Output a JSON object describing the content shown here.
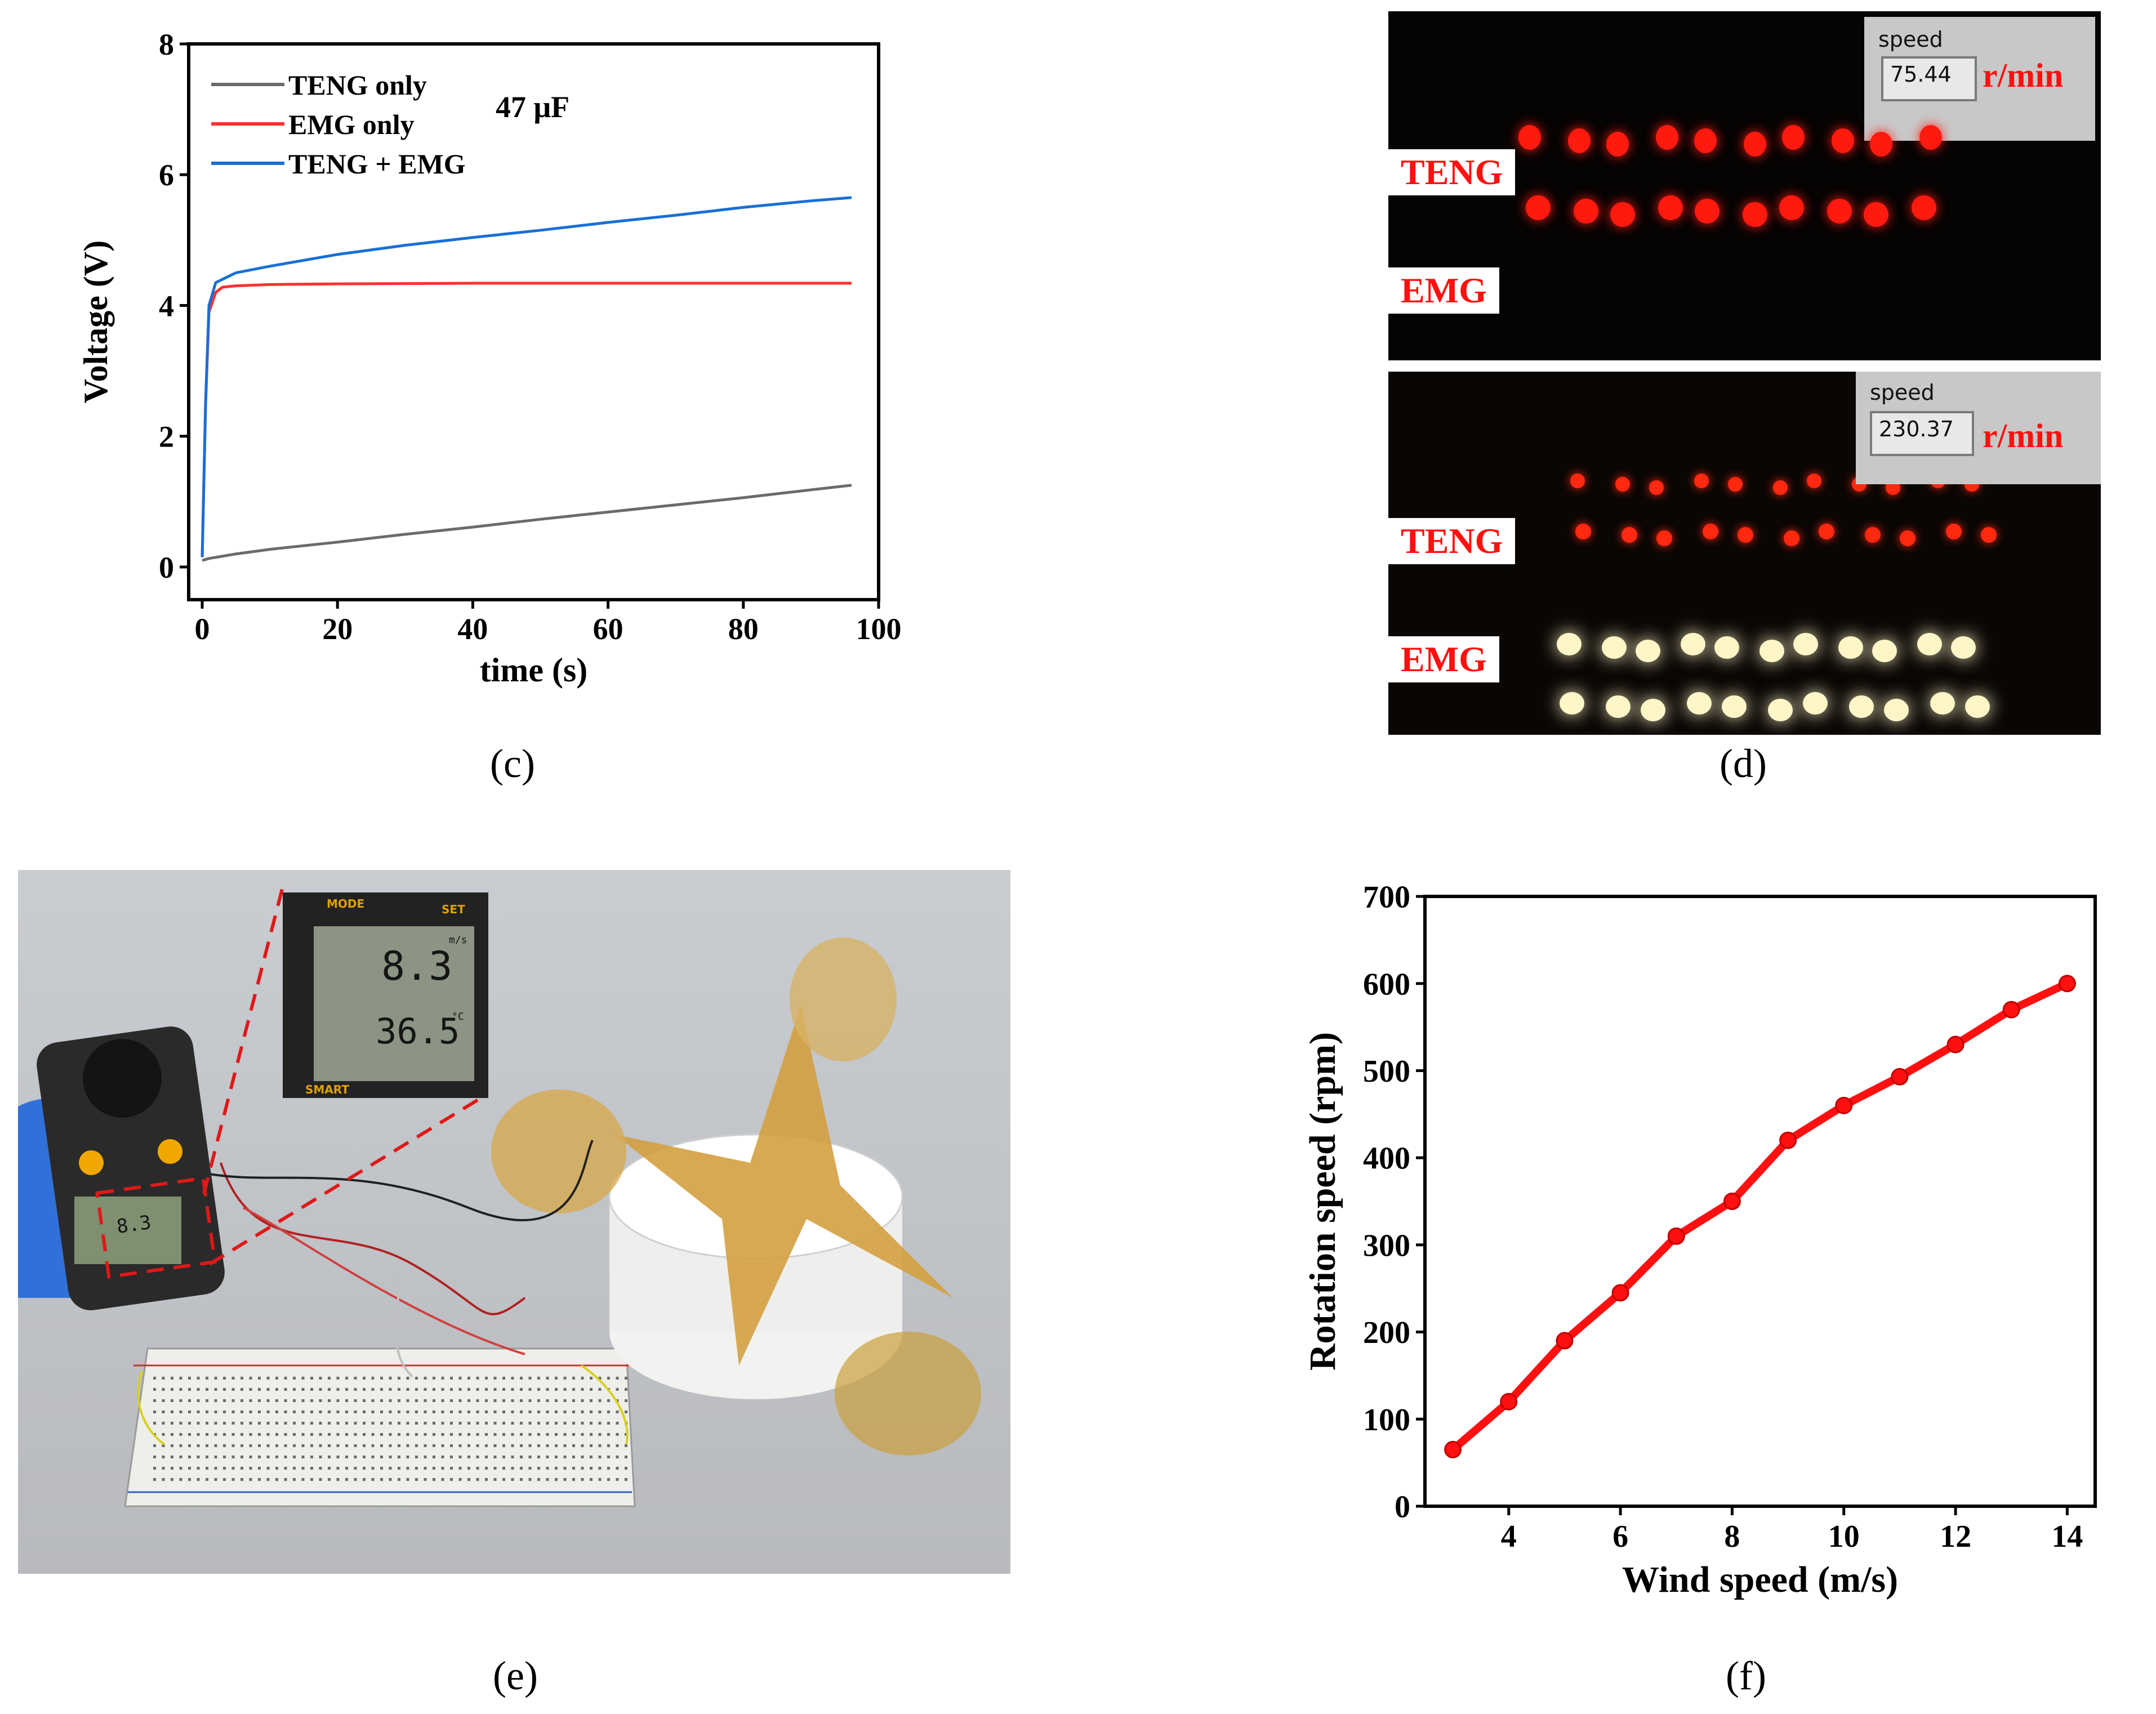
{
  "chart_data": [
    {
      "panel": "c",
      "type": "line",
      "title": "",
      "xlabel": "time (s)",
      "ylabel": "Voltage (V)",
      "xlim": [
        -2,
        100
      ],
      "ylim": [
        -0.5,
        8
      ],
      "xticks": [
        0,
        20,
        40,
        60,
        80,
        100
      ],
      "yticks": [
        0,
        2,
        4,
        6,
        8
      ],
      "annotation": "47 μF",
      "legend_position": "top-left",
      "series": [
        {
          "name": "TENG only",
          "color": "#6b6b6b",
          "x": [
            0,
            1,
            5,
            10,
            20,
            30,
            40,
            50,
            60,
            70,
            80,
            90,
            96
          ],
          "y": [
            0.1,
            0.13,
            0.2,
            0.27,
            0.38,
            0.5,
            0.61,
            0.73,
            0.84,
            0.95,
            1.06,
            1.18,
            1.25
          ]
        },
        {
          "name": "EMG  only",
          "color": "#ff3030",
          "x": [
            0,
            0.5,
            1,
            2,
            3,
            5,
            10,
            20,
            40,
            60,
            80,
            96
          ],
          "y": [
            0.15,
            2.5,
            3.9,
            4.2,
            4.28,
            4.3,
            4.32,
            4.33,
            4.34,
            4.34,
            4.34,
            4.34
          ]
        },
        {
          "name": "TENG + EMG",
          "color": "#1a6fd6",
          "x": [
            0,
            0.5,
            1,
            2,
            5,
            10,
            20,
            30,
            40,
            50,
            60,
            70,
            80,
            90,
            96
          ],
          "y": [
            0.15,
            2.5,
            4.0,
            4.35,
            4.5,
            4.6,
            4.78,
            4.92,
            5.04,
            5.15,
            5.27,
            5.38,
            5.5,
            5.6,
            5.65
          ]
        }
      ]
    },
    {
      "panel": "f",
      "type": "line",
      "title": "",
      "xlabel": "Wind speed (m/s)",
      "ylabel": "Rotation speed (rpm)",
      "xlim": [
        2.5,
        14.5
      ],
      "ylim": [
        0,
        700
      ],
      "xticks": [
        4,
        6,
        8,
        10,
        12,
        14
      ],
      "yticks": [
        0,
        100,
        200,
        300,
        400,
        500,
        600,
        700
      ],
      "series": [
        {
          "name": "Rotation speed",
          "color": "#ff1010",
          "x": [
            3,
            4,
            5,
            6,
            7,
            8,
            9,
            10,
            11,
            12,
            13,
            14
          ],
          "y": [
            65,
            120,
            190,
            245,
            310,
            350,
            420,
            460,
            493,
            530,
            570,
            600
          ]
        }
      ]
    }
  ],
  "captions": {
    "c": "(c)",
    "d": "(d)",
    "e": "(e)",
    "f": "(f)"
  },
  "photo_d": {
    "top": {
      "speed_title": "speed",
      "speed_value": "75.44",
      "unit": "r/min",
      "label_teng": "TENG",
      "label_emg": "EMG"
    },
    "bottom": {
      "speed_title": "speed",
      "speed_value": "230.37",
      "unit": "r/min",
      "label_teng": "TENG",
      "label_emg": "EMG"
    }
  },
  "photo_e": {
    "meter_mode": "MODE",
    "meter_set": "SET",
    "wind_speed": "8.3",
    "wind_unit": "m/s",
    "temperature": "36.5",
    "temp_unit": "°C",
    "brand": "SMART",
    "small_reading": "8.3"
  }
}
